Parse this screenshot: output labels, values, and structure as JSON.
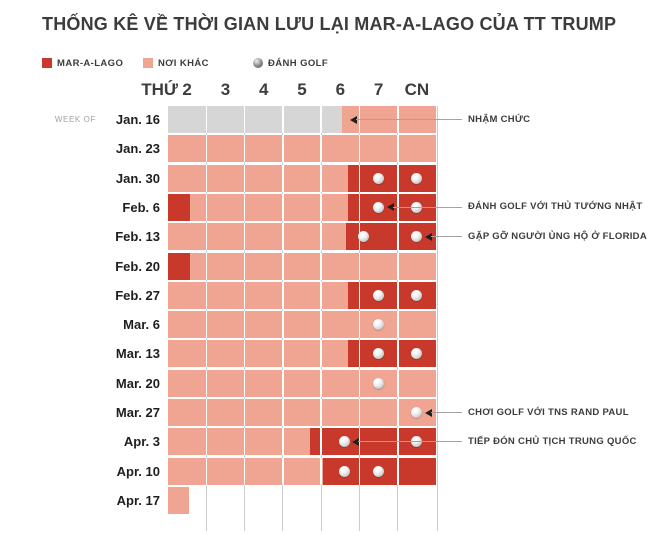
{
  "title": "THỐNG KÊ VỀ THỜI GIAN LƯU LẠI MAR-A-LAGO CỦA TT TRUMP",
  "week_of_label": "WEEK OF",
  "legend": {
    "mar_a_lago_label": "MAR-A-LAGO",
    "elsewhere_label": "NƠI KHÁC",
    "golf_label": "ĐÁNH GOLF"
  },
  "colors": {
    "mar_a_lago_red": "#c8392b",
    "elsewhere_salmon": "#f0a492",
    "pre_inauguration_gray": "#d6d6d6",
    "gridline_gray": "#cccccc",
    "annotation_line": "#a3a3a3",
    "text_dark": "#3c3c3c"
  },
  "chart_data": {
    "type": "heatmap",
    "day_header_prefix": "THỨ",
    "day_columns": [
      "2",
      "3",
      "4",
      "5",
      "6",
      "7",
      "CN"
    ],
    "weeks": [
      {
        "label": "Jan. 16",
        "segments": [
          {
            "kind": "gray",
            "start": 0,
            "end": 4.55
          },
          {
            "kind": "salmon",
            "start": 4.55,
            "end": 7
          }
        ],
        "golf_days": []
      },
      {
        "label": "Jan. 23",
        "segments": [
          {
            "kind": "salmon",
            "start": 0,
            "end": 7
          }
        ],
        "golf_days": []
      },
      {
        "label": "Jan. 30",
        "segments": [
          {
            "kind": "salmon",
            "start": 0,
            "end": 4.7
          },
          {
            "kind": "red",
            "start": 4.7,
            "end": 7
          }
        ],
        "golf_days": [
          5.5,
          6.5
        ]
      },
      {
        "label": "Feb. 6",
        "segments": [
          {
            "kind": "red",
            "start": 0,
            "end": 0.58
          },
          {
            "kind": "salmon",
            "start": 0.58,
            "end": 4.7
          },
          {
            "kind": "red",
            "start": 4.7,
            "end": 7
          }
        ],
        "golf_days": [
          5.5,
          6.5
        ]
      },
      {
        "label": "Feb. 13",
        "segments": [
          {
            "kind": "salmon",
            "start": 0,
            "end": 4.65
          },
          {
            "kind": "red",
            "start": 4.65,
            "end": 7
          }
        ],
        "golf_days": [
          5.1,
          6.5
        ]
      },
      {
        "label": "Feb. 20",
        "segments": [
          {
            "kind": "red",
            "start": 0,
            "end": 0.58
          },
          {
            "kind": "salmon",
            "start": 0.58,
            "end": 7
          }
        ],
        "golf_days": []
      },
      {
        "label": "Feb. 27",
        "segments": [
          {
            "kind": "salmon",
            "start": 0,
            "end": 4.7
          },
          {
            "kind": "red",
            "start": 4.7,
            "end": 7
          }
        ],
        "golf_days": [
          5.5,
          6.5
        ]
      },
      {
        "label": "Mar. 6",
        "segments": [
          {
            "kind": "salmon",
            "start": 0,
            "end": 7
          }
        ],
        "golf_days": [
          5.5
        ]
      },
      {
        "label": "Mar. 13",
        "segments": [
          {
            "kind": "salmon",
            "start": 0,
            "end": 4.7
          },
          {
            "kind": "red",
            "start": 4.7,
            "end": 7
          }
        ],
        "golf_days": [
          5.5,
          6.5
        ]
      },
      {
        "label": "Mar. 20",
        "segments": [
          {
            "kind": "salmon",
            "start": 0,
            "end": 7
          }
        ],
        "golf_days": [
          5.5
        ]
      },
      {
        "label": "Mar. 27",
        "segments": [
          {
            "kind": "salmon",
            "start": 0,
            "end": 7
          }
        ],
        "golf_days": [
          6.5
        ]
      },
      {
        "label": "Apr. 3",
        "segments": [
          {
            "kind": "salmon",
            "start": 0,
            "end": 3.7
          },
          {
            "kind": "red",
            "start": 3.7,
            "end": 7
          }
        ],
        "golf_days": [
          4.6,
          6.5
        ]
      },
      {
        "label": "Apr. 10",
        "segments": [
          {
            "kind": "salmon",
            "start": 0,
            "end": 4.05
          },
          {
            "kind": "red",
            "start": 4.05,
            "end": 7
          }
        ],
        "golf_days": [
          4.6,
          5.5
        ]
      },
      {
        "label": "Apr. 17",
        "segments": [
          {
            "kind": "salmon",
            "start": 0,
            "end": 0.55
          }
        ],
        "golf_days": []
      }
    ],
    "annotations": [
      {
        "text": "NHẬM CHỨC",
        "week_index": 0,
        "day": 4.55
      },
      {
        "text": "ĐÁNH GOLF VỚI THỦ TƯỚNG NHẬT",
        "week_index": 3,
        "day": 5.5
      },
      {
        "text": "GẶP GỠ NGƯỜI ỦNG HỘ Ở FLORIDA",
        "week_index": 4,
        "day": 6.5
      },
      {
        "text": "CHƠI GOLF VỚI TNS RAND PAUL",
        "week_index": 10,
        "day": 6.5
      },
      {
        "text": "TIẾP ĐÓN CHỦ TỊCH TRUNG QUỐC",
        "week_index": 11,
        "day": 4.6
      }
    ]
  }
}
